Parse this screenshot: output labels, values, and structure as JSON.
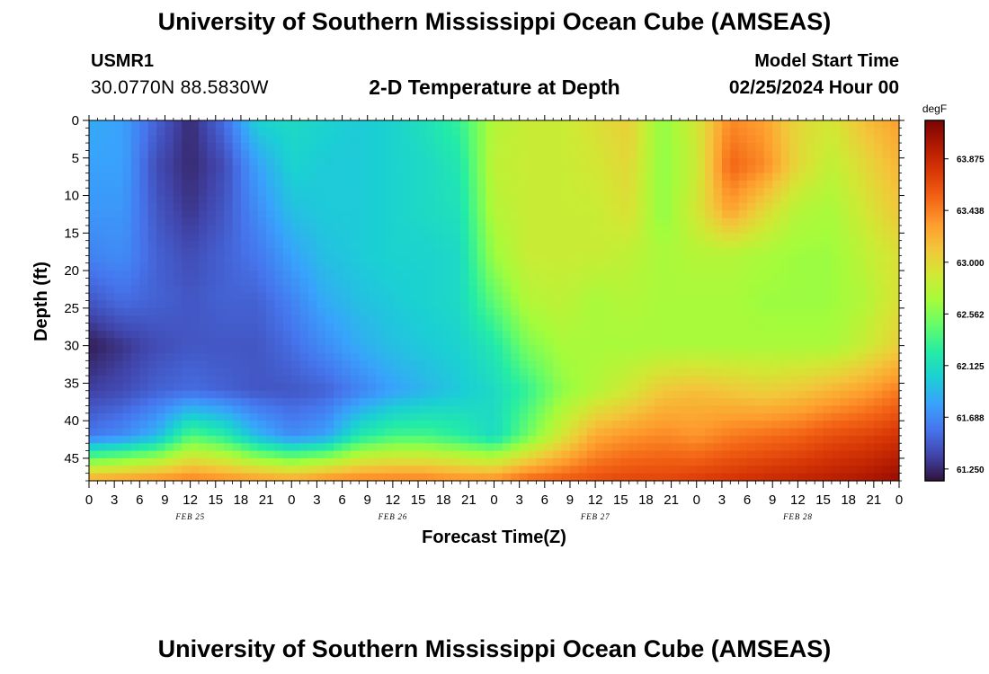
{
  "header": {
    "title": "University of Southern Mississippi Ocean Cube (AMSEAS)",
    "station": "USMR1",
    "coords": "30.0770N  88.5830W",
    "model_start_label": "Model Start Time",
    "model_start_value": "02/25/2024 Hour 00"
  },
  "footer": {
    "title": "University of Southern Mississippi Ocean Cube (AMSEAS)"
  },
  "chart_data": {
    "type": "heatmap",
    "title": "2-D Temperature at Depth",
    "xlabel": "Forecast Time(Z)",
    "ylabel": "Depth (ft)",
    "x_range_hours": [
      0,
      96
    ],
    "y_range_ft": [
      0,
      48
    ],
    "x_tick_hours": [
      0,
      3,
      6,
      9,
      12,
      15,
      18,
      21,
      24,
      27,
      30,
      33,
      36,
      39,
      42,
      45,
      48,
      51,
      54,
      57,
      60,
      63,
      66,
      69,
      72,
      75,
      78,
      81,
      84,
      87,
      90,
      93,
      96
    ],
    "x_tick_labels": [
      "0",
      "3",
      "6",
      "9",
      "12",
      "15",
      "18",
      "21",
      "0",
      "3",
      "6",
      "9",
      "12",
      "15",
      "18",
      "21",
      "0",
      "3",
      "6",
      "9",
      "12",
      "15",
      "18",
      "21",
      "0",
      "3",
      "6",
      "9",
      "12",
      "15",
      "18",
      "21",
      "0"
    ],
    "day_labels": [
      {
        "hour": 12,
        "label": "FEB 25"
      },
      {
        "hour": 36,
        "label": "FEB 26"
      },
      {
        "hour": 60,
        "label": "FEB 27"
      },
      {
        "hour": 84,
        "label": "FEB 28"
      }
    ],
    "y_ticks": [
      0,
      5,
      10,
      15,
      20,
      25,
      30,
      35,
      40,
      45
    ],
    "y_tick_labels": [
      "0",
      "5",
      "10",
      "15",
      "20",
      "25",
      "30",
      "35",
      "40",
      "45"
    ],
    "colorbar": {
      "unit": "degF",
      "min": 61.15,
      "max": 64.2,
      "ticks": [
        61.25,
        61.688,
        62.125,
        62.562,
        63.0,
        63.438,
        63.875
      ],
      "tick_labels": [
        "61.250",
        "61.688",
        "62.125",
        "62.562",
        "63.000",
        "63.438",
        "63.875"
      ],
      "colors": [
        "#30123b",
        "#4145ab",
        "#4675ed",
        "#39a2fc",
        "#1bcfd4",
        "#24eca6",
        "#61fc6c",
        "#a4fc3b",
        "#d1e834",
        "#f3c63a",
        "#fe9b2d",
        "#f36315",
        "#d93806",
        "#b11901",
        "#7a0403"
      ]
    },
    "grid_hours": [
      0,
      4,
      8,
      12,
      16,
      20,
      24,
      28,
      32,
      36,
      40,
      44,
      48,
      52,
      56,
      60,
      64,
      68,
      72,
      76,
      80,
      84,
      88,
      92,
      96
    ],
    "grid_depths_ft": [
      0,
      6,
      12,
      18,
      24,
      30,
      36,
      42,
      48
    ],
    "temperature_degF": [
      [
        61.85,
        61.8,
        61.5,
        61.25,
        61.55,
        62.05,
        62.1,
        62.05,
        62.0,
        62.05,
        62.15,
        62.3,
        62.75,
        62.85,
        62.85,
        62.95,
        63.05,
        62.6,
        62.9,
        63.4,
        63.3,
        63.0,
        62.9,
        63.15,
        63.3
      ],
      [
        61.8,
        61.8,
        61.4,
        61.25,
        61.4,
        61.8,
        62.05,
        62.0,
        62.0,
        62.05,
        62.1,
        62.2,
        62.8,
        62.85,
        62.85,
        62.9,
        63.0,
        62.6,
        62.85,
        63.55,
        63.4,
        63.0,
        62.8,
        63.0,
        63.2
      ],
      [
        61.75,
        61.75,
        61.45,
        61.3,
        61.45,
        61.7,
        61.95,
        62.0,
        62.0,
        62.05,
        62.1,
        62.15,
        62.75,
        62.85,
        62.85,
        62.85,
        62.95,
        62.6,
        62.9,
        63.3,
        63.0,
        62.75,
        62.7,
        62.9,
        63.1
      ],
      [
        61.65,
        61.7,
        61.5,
        61.4,
        61.5,
        61.6,
        61.8,
        61.95,
        62.0,
        62.05,
        62.05,
        62.1,
        62.65,
        62.85,
        62.85,
        62.85,
        62.8,
        62.7,
        62.75,
        62.75,
        62.7,
        62.65,
        62.65,
        62.8,
        62.95
      ],
      [
        61.45,
        61.55,
        61.5,
        61.45,
        61.5,
        61.5,
        61.65,
        61.85,
        61.95,
        62.0,
        62.05,
        62.1,
        62.45,
        62.75,
        62.8,
        62.7,
        62.75,
        62.7,
        62.7,
        62.7,
        62.65,
        62.65,
        62.65,
        62.75,
        62.95
      ],
      [
        61.2,
        61.3,
        61.4,
        61.45,
        61.45,
        61.45,
        61.55,
        61.7,
        61.85,
        61.95,
        62.0,
        62.05,
        62.2,
        62.55,
        62.7,
        62.7,
        62.7,
        62.7,
        62.7,
        62.7,
        62.7,
        62.7,
        62.7,
        62.85,
        63.05
      ],
      [
        61.35,
        61.4,
        61.5,
        61.55,
        61.5,
        61.45,
        61.45,
        61.5,
        61.65,
        61.8,
        61.9,
        62.0,
        62.1,
        62.3,
        62.6,
        62.75,
        62.9,
        63.1,
        63.15,
        63.1,
        63.05,
        63.1,
        63.2,
        63.3,
        63.45
      ],
      [
        61.6,
        61.7,
        61.9,
        62.4,
        62.25,
        61.9,
        61.7,
        61.8,
        62.2,
        62.35,
        62.35,
        62.25,
        62.1,
        62.5,
        62.9,
        63.25,
        63.35,
        63.4,
        63.35,
        63.45,
        63.5,
        63.55,
        63.65,
        63.7,
        63.8
      ],
      [
        63.3,
        63.35,
        63.4,
        63.45,
        63.4,
        63.35,
        63.3,
        63.4,
        63.45,
        63.45,
        63.45,
        63.4,
        63.4,
        63.55,
        63.6,
        63.65,
        63.7,
        63.7,
        63.75,
        63.8,
        63.85,
        63.9,
        63.95,
        64.0,
        64.1
      ]
    ]
  }
}
